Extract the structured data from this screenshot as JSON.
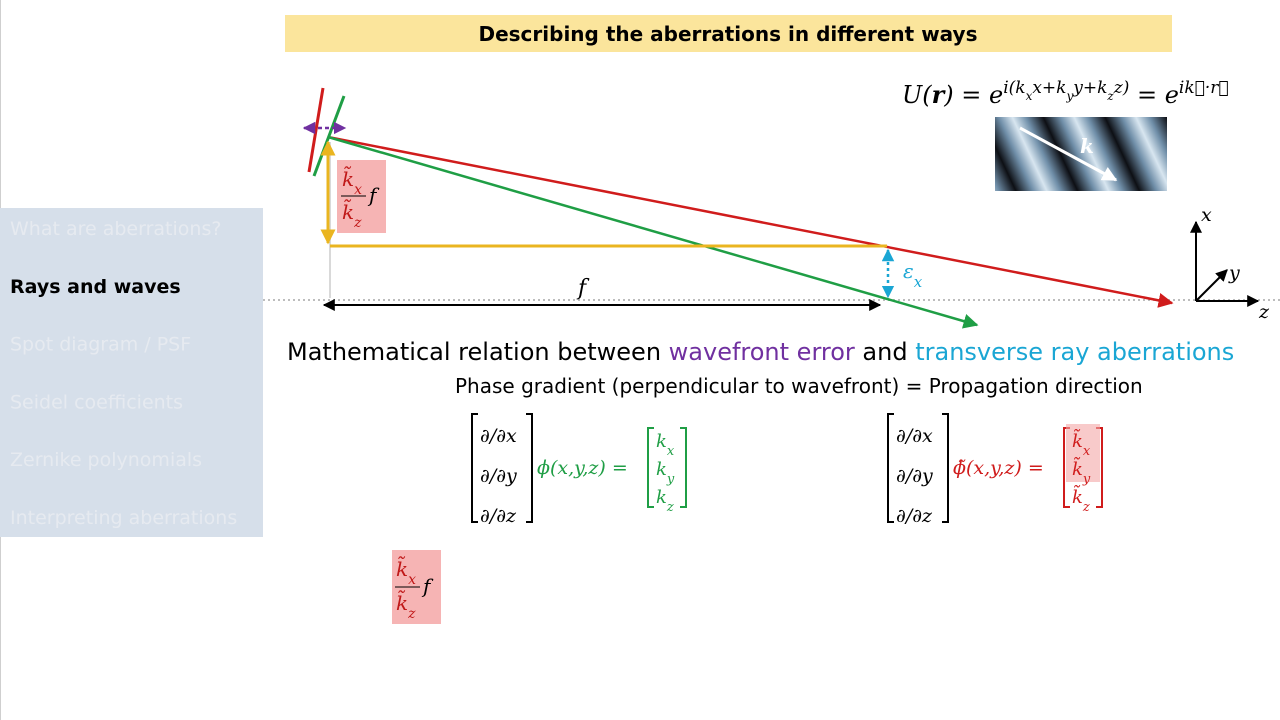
{
  "title": "Describing the aberrations in different ways",
  "sidebar": {
    "items": [
      "What are aberrations?",
      "Rays and waves",
      "Spot diagram / PSF",
      "Seidel coefficients",
      "Zernike polynomials",
      "Interpreting aberrations"
    ],
    "active": 1
  },
  "diagram": {
    "focal_label": "f",
    "epsilon": {
      "base": "ε",
      "sub": "x"
    },
    "k_label": "k",
    "axes": {
      "x": "x",
      "y": "y",
      "z": "z"
    },
    "fraction": {
      "num": "k̃",
      "num_sub": "x",
      "den": "k̃",
      "den_sub": "z",
      "tail": "f"
    }
  },
  "plane_wave": {
    "lhs": "U(",
    "r": "r",
    "close": ") = e",
    "exp1": [
      "i(k",
      "x",
      "x+k",
      "y",
      "y+k",
      "z",
      "z)"
    ],
    "mid": " = e",
    "exp2": "ik⃗·r⃗"
  },
  "heading": {
    "parts": [
      "Mathematical relation between ",
      "wavefront error",
      " and ",
      "transverse ray aberrations"
    ]
  },
  "subheading": "Phase gradient (perpendicular to wavefront) = Propagation direction",
  "equations": [
    {
      "operators": [
        "∂/∂x",
        "∂/∂y",
        "∂/∂z"
      ],
      "function": "ϕ(x,y,z) =",
      "vector": [
        {
          "base": "k",
          "sub": "x"
        },
        {
          "base": "k",
          "sub": "y"
        },
        {
          "base": "k",
          "sub": "z"
        }
      ]
    },
    {
      "operators": [
        "∂/∂x",
        "∂/∂y",
        "∂/∂z"
      ],
      "function": "ϕ̃(x,y,z) =",
      "vector": [
        {
          "base": "k̃",
          "sub": "x"
        },
        {
          "base": "k̃",
          "sub": "y"
        },
        {
          "base": "k̃",
          "sub": "z"
        }
      ]
    }
  ]
}
